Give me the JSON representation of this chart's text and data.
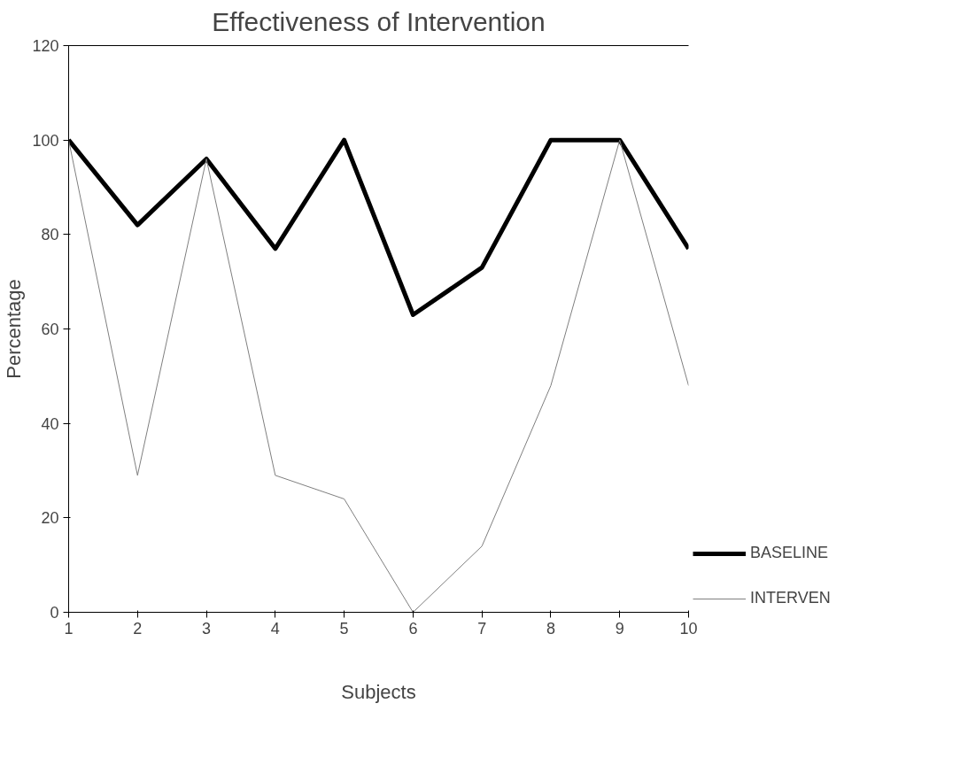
{
  "chart_data": {
    "type": "line",
    "title": "Effectiveness of Intervention",
    "xlabel": "Subjects",
    "ylabel": "Percentage",
    "x": [
      1,
      2,
      3,
      4,
      5,
      6,
      7,
      8,
      9,
      10
    ],
    "series": [
      {
        "name": "BASELINE",
        "color": "#000000",
        "values": [
          100,
          82,
          96,
          77,
          100,
          63,
          73,
          100,
          100,
          77
        ]
      },
      {
        "name": "INTERVEN",
        "color": "#7f7f7f",
        "values": [
          100,
          29,
          96,
          29,
          24,
          0,
          14,
          48,
          100,
          48
        ]
      }
    ],
    "xlim": [
      1,
      10
    ],
    "xticks": [
      1,
      2,
      3,
      4,
      5,
      6,
      7,
      8,
      9,
      10
    ],
    "ylim": [
      0,
      120
    ],
    "yticks": [
      0,
      20,
      40,
      60,
      80,
      100,
      120
    ],
    "grid": false,
    "legend": "bottom right",
    "marker": "none",
    "line_style": "solid"
  }
}
